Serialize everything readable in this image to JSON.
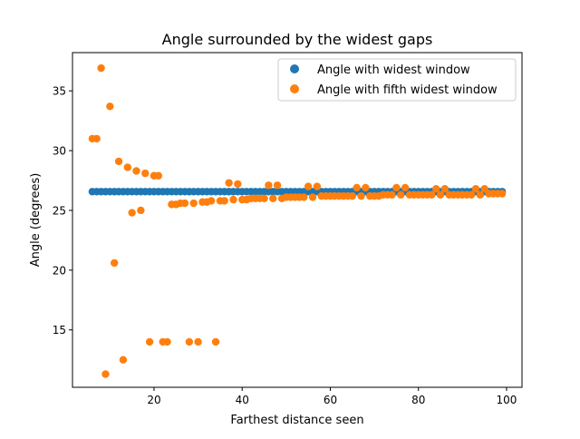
{
  "colors": {
    "series_1": "#1f77b4",
    "series_2": "#ff7f0e"
  },
  "chart_data": {
    "type": "scatter",
    "title": "Angle surrounded by the widest gaps",
    "xlabel": "Farthest distance seen",
    "ylabel": "Angle (degrees)",
    "xlim": [
      1.5,
      103.5
    ],
    "ylim": [
      10.2,
      38.2
    ],
    "xticks": [
      20,
      40,
      60,
      80,
      100
    ],
    "xtick_labels": [
      "20",
      "40",
      "60",
      "80",
      "100"
    ],
    "yticks": [
      15,
      20,
      25,
      30,
      35
    ],
    "ytick_labels": [
      "15",
      "20",
      "25",
      "30",
      "35"
    ],
    "grid": false,
    "legend_position": "top-right",
    "series": [
      {
        "name": "Angle with widest window",
        "color": "#1f77b4",
        "x": [
          6,
          7,
          8,
          9,
          10,
          11,
          12,
          13,
          14,
          15,
          16,
          17,
          18,
          19,
          20,
          21,
          22,
          23,
          24,
          25,
          26,
          27,
          28,
          29,
          30,
          31,
          32,
          33,
          34,
          35,
          36,
          37,
          38,
          39,
          40,
          41,
          42,
          43,
          44,
          45,
          46,
          47,
          48,
          49,
          50,
          51,
          52,
          53,
          54,
          55,
          56,
          57,
          58,
          59,
          60,
          61,
          62,
          63,
          64,
          65,
          66,
          67,
          68,
          69,
          70,
          71,
          72,
          73,
          74,
          75,
          76,
          77,
          78,
          79,
          80,
          81,
          82,
          83,
          84,
          85,
          86,
          87,
          88,
          89,
          90,
          91,
          92,
          93,
          94,
          95,
          96,
          97,
          98,
          99
        ],
        "y": [
          26.57,
          26.57,
          26.57,
          26.57,
          26.57,
          26.57,
          26.57,
          26.57,
          26.57,
          26.57,
          26.57,
          26.57,
          26.57,
          26.57,
          26.57,
          26.57,
          26.57,
          26.57,
          26.57,
          26.57,
          26.57,
          26.57,
          26.57,
          26.57,
          26.57,
          26.57,
          26.57,
          26.57,
          26.57,
          26.57,
          26.57,
          26.57,
          26.57,
          26.57,
          26.57,
          26.57,
          26.57,
          26.57,
          26.57,
          26.57,
          26.57,
          26.57,
          26.57,
          26.57,
          26.57,
          26.57,
          26.57,
          26.57,
          26.57,
          26.57,
          26.57,
          26.57,
          26.57,
          26.57,
          26.57,
          26.57,
          26.57,
          26.57,
          26.57,
          26.57,
          26.57,
          26.57,
          26.57,
          26.57,
          26.57,
          26.57,
          26.57,
          26.57,
          26.57,
          26.57,
          26.57,
          26.57,
          26.57,
          26.57,
          26.57,
          26.57,
          26.57,
          26.57,
          26.57,
          26.57,
          26.57,
          26.57,
          26.57,
          26.57,
          26.57,
          26.57,
          26.57,
          26.57,
          26.57,
          26.57,
          26.57,
          26.57,
          26.57,
          26.57
        ]
      },
      {
        "name": "Angle with fifth widest window",
        "color": "#ff7f0e",
        "x": [
          6,
          7,
          8,
          9,
          10,
          11,
          12,
          13,
          14,
          15,
          16,
          17,
          18,
          19,
          20,
          21,
          22,
          23,
          24,
          25,
          26,
          27,
          28,
          29,
          30,
          31,
          32,
          33,
          34,
          35,
          36,
          37,
          38,
          39,
          40,
          41,
          42,
          43,
          44,
          45,
          46,
          47,
          48,
          49,
          50,
          51,
          52,
          53,
          54,
          55,
          56,
          57,
          58,
          59,
          60,
          61,
          62,
          63,
          64,
          65,
          66,
          67,
          68,
          69,
          70,
          71,
          72,
          73,
          74,
          75,
          76,
          77,
          78,
          79,
          80,
          81,
          82,
          83,
          84,
          85,
          86,
          87,
          88,
          89,
          90,
          91,
          92,
          93,
          94,
          95,
          96,
          97,
          98,
          99
        ],
        "y": [
          31.0,
          31.0,
          36.9,
          11.3,
          33.7,
          20.6,
          29.1,
          12.5,
          28.6,
          24.8,
          28.3,
          25.0,
          28.1,
          14.0,
          27.9,
          27.9,
          14.0,
          14.0,
          25.5,
          25.5,
          25.6,
          25.6,
          14.0,
          25.6,
          14.0,
          25.7,
          25.7,
          25.8,
          14.0,
          25.8,
          25.8,
          27.3,
          25.9,
          27.2,
          25.9,
          25.9,
          26.0,
          26.0,
          26.0,
          26.0,
          27.1,
          26.0,
          27.1,
          26.0,
          26.1,
          26.1,
          26.1,
          26.1,
          26.1,
          27.0,
          26.1,
          27.0,
          26.2,
          26.2,
          26.2,
          26.2,
          26.2,
          26.2,
          26.2,
          26.2,
          26.9,
          26.2,
          26.9,
          26.2,
          26.2,
          26.2,
          26.3,
          26.3,
          26.3,
          26.9,
          26.3,
          26.9,
          26.3,
          26.3,
          26.3,
          26.3,
          26.3,
          26.3,
          26.8,
          26.3,
          26.8,
          26.3,
          26.3,
          26.3,
          26.3,
          26.3,
          26.3,
          26.8,
          26.3,
          26.8,
          26.4,
          26.4,
          26.4,
          26.4
        ]
      }
    ]
  }
}
